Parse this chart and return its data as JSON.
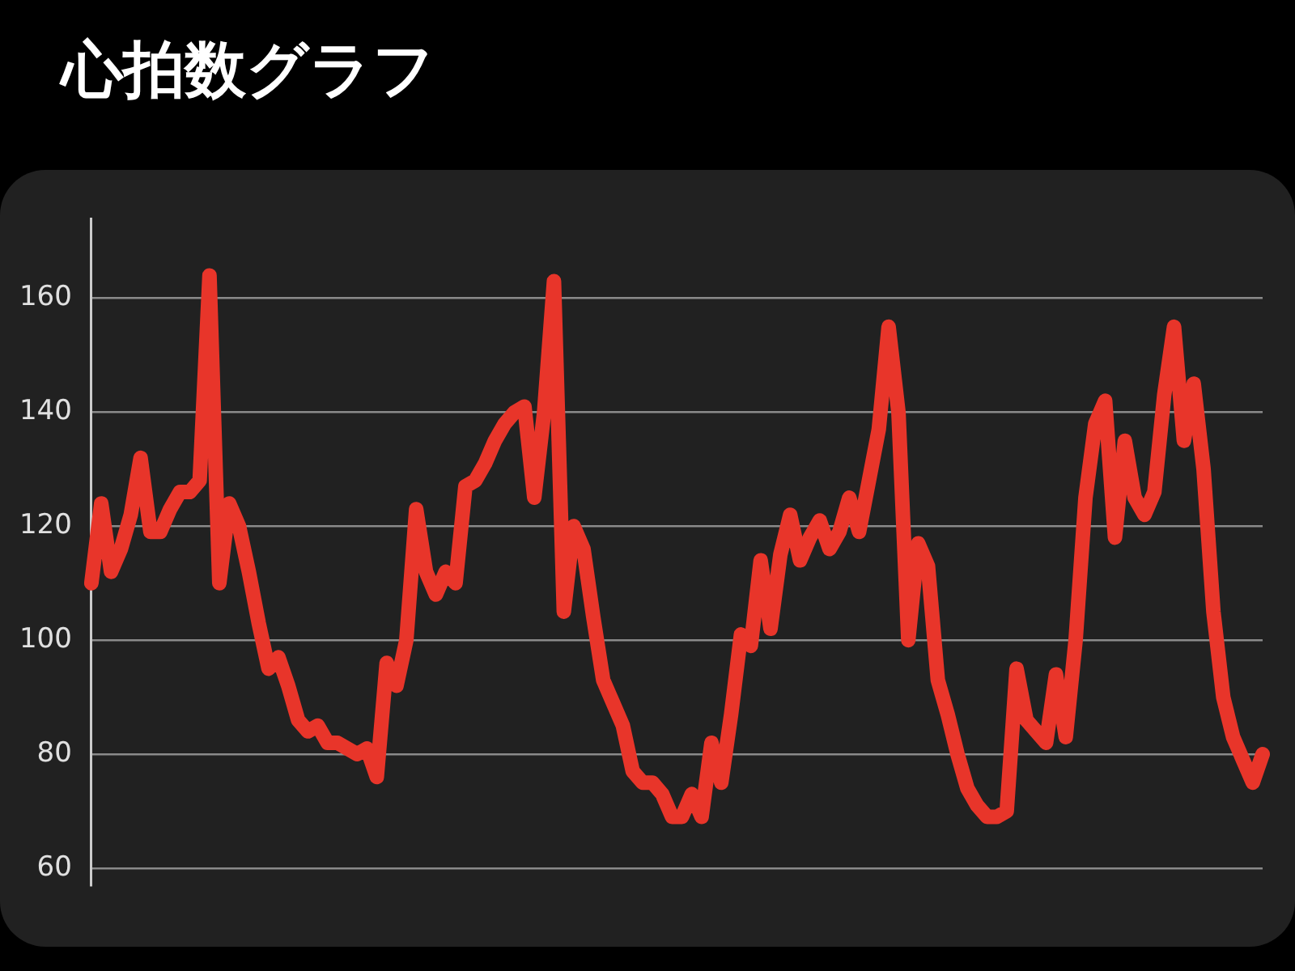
{
  "chart_data": {
    "type": "line",
    "title": "心拍数グラフ",
    "categories": [
      null,
      null,
      null,
      null,
      null,
      null,
      null,
      null,
      null,
      null,
      null,
      null,
      null,
      null,
      null,
      null,
      null,
      null,
      null,
      null,
      null,
      null,
      null,
      null,
      null,
      null,
      null,
      null,
      null,
      null,
      null,
      null,
      null,
      null,
      null,
      null,
      null,
      null,
      null,
      null,
      null,
      null,
      null,
      null,
      null,
      null,
      null,
      null,
      null,
      null,
      null,
      null,
      null,
      null,
      null,
      null,
      null,
      null,
      null,
      null,
      null,
      null,
      null,
      null,
      null,
      null,
      null,
      null,
      null,
      null,
      null,
      null,
      null,
      null,
      null,
      null,
      null,
      null,
      null,
      null,
      null,
      null,
      null,
      null,
      null,
      null,
      null,
      null,
      null,
      null,
      null,
      null,
      null,
      null,
      null,
      null,
      null,
      null,
      null,
      null,
      null,
      null,
      null,
      null,
      null,
      null,
      null,
      null,
      null,
      null,
      null,
      null,
      null,
      null,
      null,
      null,
      null,
      null,
      null,
      null
    ],
    "series": [
      {
        "color": "#e8352a",
        "values": [
          110,
          124,
          112,
          116,
          122,
          132,
          119,
          119,
          123,
          126,
          126,
          128,
          164,
          110,
          124,
          120,
          112,
          103,
          95,
          97,
          92,
          86,
          84,
          85,
          82,
          82,
          81,
          80,
          81,
          76,
          96,
          92,
          100,
          123,
          112,
          108,
          112,
          110,
          127,
          128,
          131,
          135,
          138,
          140,
          141,
          125,
          140,
          163,
          105,
          120,
          116,
          104,
          93,
          89,
          85,
          77,
          75,
          75,
          73,
          69,
          69,
          73,
          69,
          82,
          75,
          87,
          101,
          99,
          114,
          102,
          115,
          122,
          114,
          118,
          121,
          116,
          119,
          125,
          119,
          128,
          137,
          155,
          140,
          100,
          117,
          113,
          93,
          87,
          80,
          74,
          71,
          69,
          69,
          70,
          95,
          86,
          84,
          82,
          94,
          83,
          100,
          125,
          138,
          142,
          118,
          135,
          125,
          122,
          126,
          143,
          155,
          135,
          145,
          130,
          105,
          90,
          83,
          79,
          75,
          80
        ]
      }
    ],
    "ylim": [
      57,
      174
    ],
    "yticks": [
      60,
      80,
      100,
      120,
      140,
      160
    ],
    "grid": "y",
    "tick_labels": "y"
  }
}
